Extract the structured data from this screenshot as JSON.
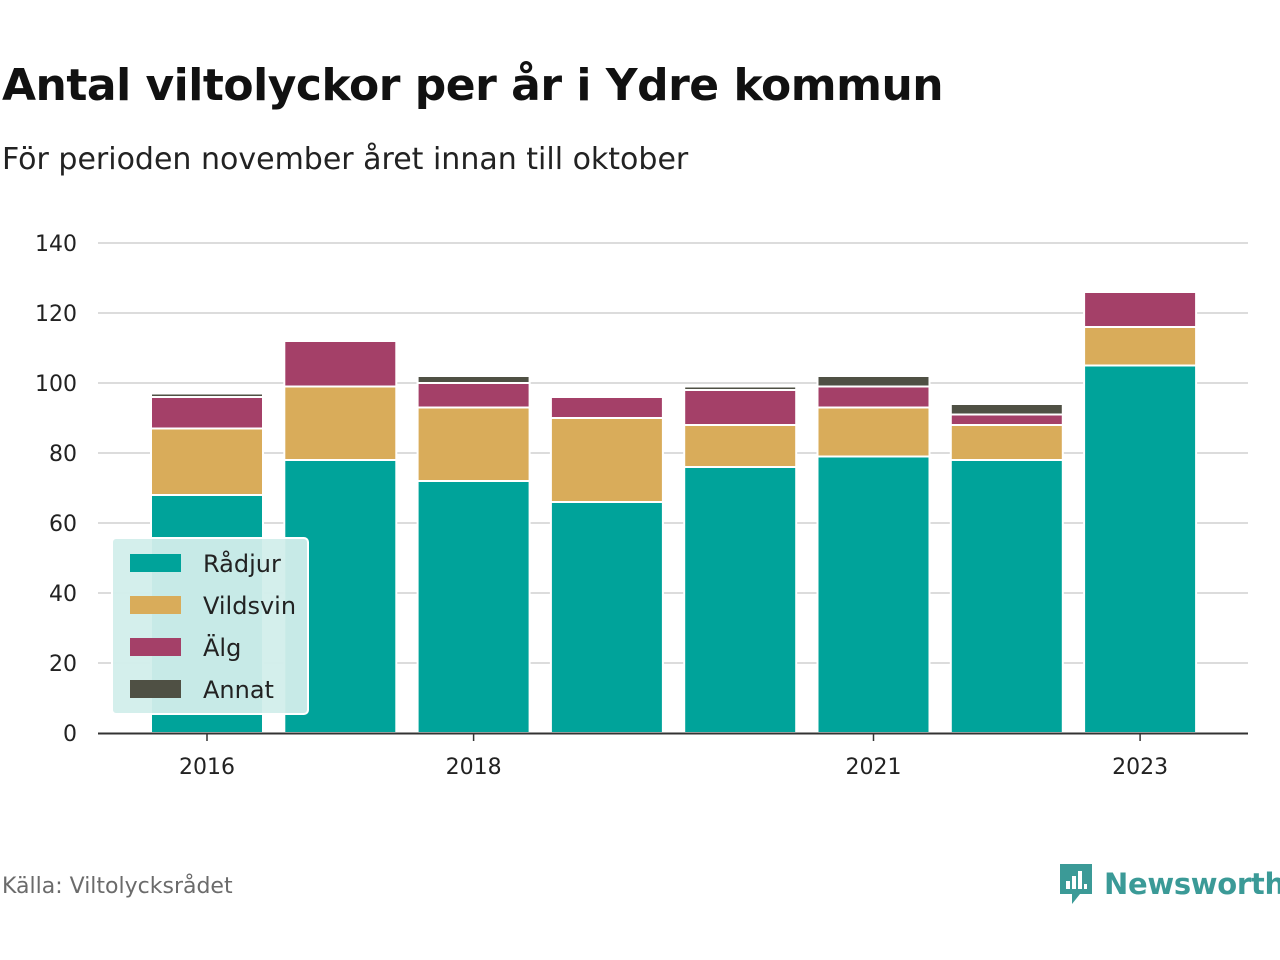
{
  "title": "Antal viltolyckor per år i Ydre kommun",
  "subtitle": "För perioden november året innan till oktober",
  "source": "Källa: Viltolycksrådet",
  "brand": {
    "name": "Newsworthy",
    "icon": "newsworthy-logo-icon",
    "color": "#3b9a97"
  },
  "chart_data": {
    "type": "bar",
    "stacked": true,
    "categories": [
      "2016",
      "2017",
      "2018",
      "2019",
      "2020",
      "2021",
      "2022",
      "2023"
    ],
    "x_tick_labels": [
      "2016",
      "",
      "2018",
      "",
      "",
      "2021",
      "",
      "2023"
    ],
    "series": [
      {
        "name": "Rådjur",
        "color": "#00a39a",
        "values": [
          68,
          78,
          72,
          66,
          76,
          79,
          78,
          105
        ]
      },
      {
        "name": "Vildsvin",
        "color": "#d9ac5a",
        "values": [
          19,
          21,
          21,
          24,
          12,
          14,
          10,
          11
        ]
      },
      {
        "name": "Älg",
        "color": "#a44068",
        "values": [
          9,
          13,
          7,
          6,
          10,
          6,
          3,
          10
        ]
      },
      {
        "name": "Annat",
        "color": "#4f5044",
        "values": [
          1,
          0,
          2,
          0,
          1,
          3,
          3,
          0
        ]
      }
    ],
    "ylim": [
      0,
      140
    ],
    "yticks": [
      0,
      20,
      40,
      60,
      80,
      100,
      120,
      140
    ],
    "grid": true,
    "legend_position": "bottom-left"
  }
}
